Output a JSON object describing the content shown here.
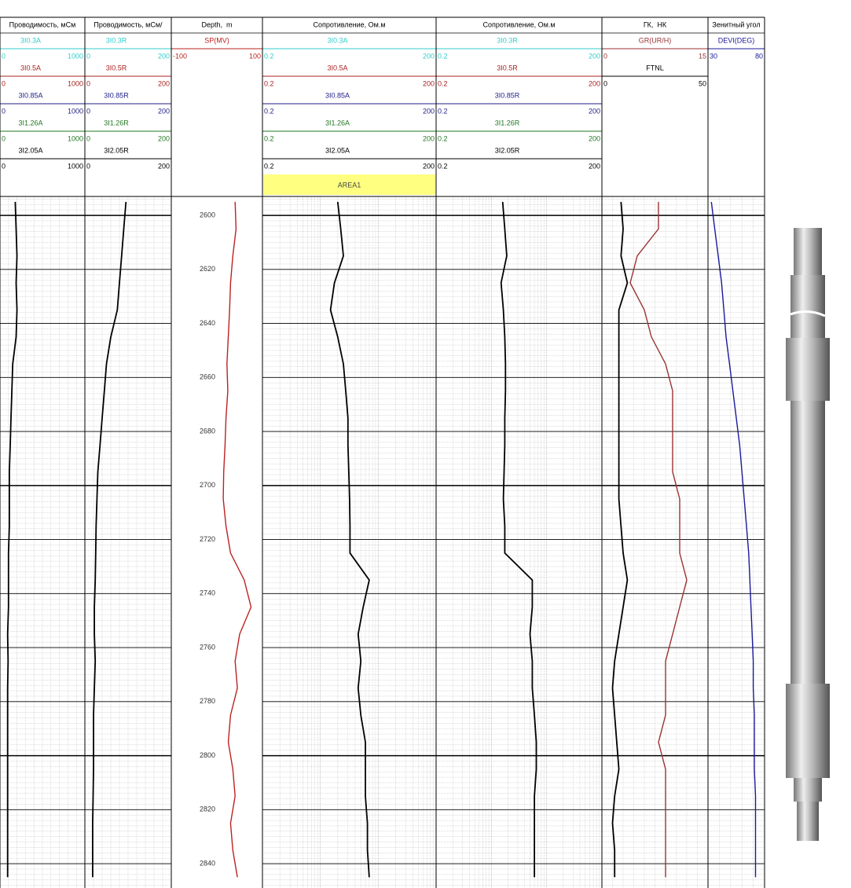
{
  "chart_data": {
    "type": "well-log",
    "depth": [
      2595,
      2605,
      2615,
      2625,
      2635,
      2645,
      2655,
      2665,
      2675,
      2685,
      2695,
      2705,
      2715,
      2725,
      2735,
      2745,
      2755,
      2765,
      2775,
      2785,
      2795,
      2805,
      2815,
      2825,
      2835,
      2845
    ],
    "depth_lim": [
      2593,
      2849
    ],
    "depth_labels": [
      2600,
      2620,
      2640,
      2660,
      2680,
      2700,
      2720,
      2740,
      2760,
      2780,
      2800,
      2820,
      2840
    ],
    "tracks": [
      {
        "title": "Проводимость, мСм",
        "log": false,
        "curves": [
          {
            "name": "3I0.3A",
            "color": "#33cccc",
            "min": 0,
            "max": 1000
          },
          {
            "name": "3I0.5A",
            "color": "#aa2222",
            "min": 0,
            "max": 1000
          },
          {
            "name": "3I0.85A",
            "color": "#222288",
            "min": 0,
            "max": 1000
          },
          {
            "name": "3I1.26A",
            "color": "#227722",
            "min": 0,
            "max": 1000
          },
          {
            "name": "3I2.05A",
            "color": "#000000",
            "min": 0,
            "max": 1000,
            "values": [
              180,
              190,
              200,
              190,
              200,
              190,
              150,
              140,
              130,
              120,
              110,
              110,
              110,
              100,
              100,
              100,
              90,
              95,
              90,
              90,
              90,
              90,
              90,
              90,
              90,
              90
            ]
          }
        ]
      },
      {
        "title": "Проводимость, мСм/",
        "log": false,
        "curves": [
          {
            "name": "3I0.3R",
            "color": "#33cccc",
            "min": 0,
            "max": 200
          },
          {
            "name": "3I0.5R",
            "color": "#aa2222",
            "min": 0,
            "max": 200
          },
          {
            "name": "3I0.85R",
            "color": "#222288",
            "min": 0,
            "max": 200
          },
          {
            "name": "3I1.26R",
            "color": "#227722",
            "min": 0,
            "max": 200
          },
          {
            "name": "3I2.05R",
            "color": "#000000",
            "min": 0,
            "max": 200,
            "values": [
              95,
              90,
              85,
              80,
              75,
              60,
              50,
              45,
              40,
              35,
              30,
              28,
              26,
              25,
              24,
              22,
              22,
              24,
              22,
              20,
              20,
              20,
              19,
              18,
              18,
              18
            ]
          }
        ]
      },
      {
        "title": "Depth,  m",
        "log": false,
        "depth_track": true,
        "curves": [
          {
            "name": "SP(MV)",
            "color": "#bb2222",
            "min": -100,
            "max": 100,
            "values": [
              40,
              42,
              35,
              30,
              28,
              25,
              22,
              24,
              20,
              18,
              15,
              14,
              20,
              30,
              60,
              75,
              50,
              40,
              45,
              30,
              25,
              35,
              40,
              30,
              35,
              45
            ]
          }
        ]
      },
      {
        "title": "Сопротивление, Ом.м",
        "log": true,
        "area_label": "AREA1",
        "curves": [
          {
            "name": "3I0.3A",
            "color": "#33cccc",
            "min": 0.2,
            "max": 200
          },
          {
            "name": "3I0.5A",
            "color": "#aa2222",
            "min": 0.2,
            "max": 200
          },
          {
            "name": "3I0.85A",
            "color": "#222288",
            "min": 0.2,
            "max": 200
          },
          {
            "name": "3I1.26A",
            "color": "#227722",
            "min": 0.2,
            "max": 200
          },
          {
            "name": "3I2.05A",
            "color": "#000000",
            "min": 0.2,
            "max": 200,
            "values": [
              4,
              4.5,
              5,
              3.5,
              3,
              4,
              5,
              5.5,
              6,
              6,
              6.2,
              6.4,
              6.5,
              6.5,
              14,
              11,
              9,
              10,
              9,
              10,
              12,
              12,
              12,
              13,
              13,
              14
            ]
          }
        ]
      },
      {
        "title": "Сопротивление, Ом.м",
        "log": true,
        "curves": [
          {
            "name": "3I0.3R",
            "color": "#33cccc",
            "min": 0.2,
            "max": 200
          },
          {
            "name": "3I0.5R",
            "color": "#aa2222",
            "min": 0.2,
            "max": 200
          },
          {
            "name": "3I0.85R",
            "color": "#222288",
            "min": 0.2,
            "max": 200
          },
          {
            "name": "3I1.26R",
            "color": "#227722",
            "min": 0.2,
            "max": 200
          },
          {
            "name": "3I2.05R",
            "color": "#000000",
            "min": 0.2,
            "max": 200,
            "values": [
              3.2,
              3.5,
              3.8,
              3,
              3.3,
              3.5,
              3.6,
              3.6,
              3.5,
              3.5,
              3.4,
              3.3,
              3.5,
              3.5,
              11,
              11,
              10,
              11,
              11,
              12,
              13,
              13,
              12,
              12,
              12,
              12
            ]
          }
        ]
      },
      {
        "title": "ГК,  НК",
        "log": false,
        "curves": [
          {
            "name": "GR(UR/H)",
            "color": "#993333",
            "min": 0,
            "max": 15,
            "values": [
              8,
              8,
              5,
              4,
              6,
              7,
              9,
              10,
              10,
              10,
              10,
              11,
              11,
              11,
              12,
              11,
              10,
              9,
              9,
              9,
              8,
              9,
              9,
              9,
              9,
              9
            ]
          },
          {
            "name": "FTNL",
            "color": "#000000",
            "min": 0,
            "max": 50,
            "values": [
              9,
              10,
              9,
              12,
              8,
              8,
              8,
              8,
              8,
              8,
              8,
              8,
              9,
              10,
              12,
              10,
              8,
              6,
              5,
              6,
              7,
              8,
              6,
              5,
              6,
              6
            ]
          }
        ]
      },
      {
        "title": "Зенитный угол",
        "log": false,
        "curves": [
          {
            "name": "DEVI(DEG)",
            "color": "#1a1a99",
            "min": 30,
            "max": 80,
            "values": [
              33,
              36,
              39,
              42,
              44,
              46,
              49,
              52,
              55,
              58,
              60,
              62,
              64,
              66,
              67,
              68,
              69,
              70,
              70,
              71,
              71,
              71,
              72,
              72,
              72,
              72
            ]
          }
        ]
      }
    ]
  }
}
